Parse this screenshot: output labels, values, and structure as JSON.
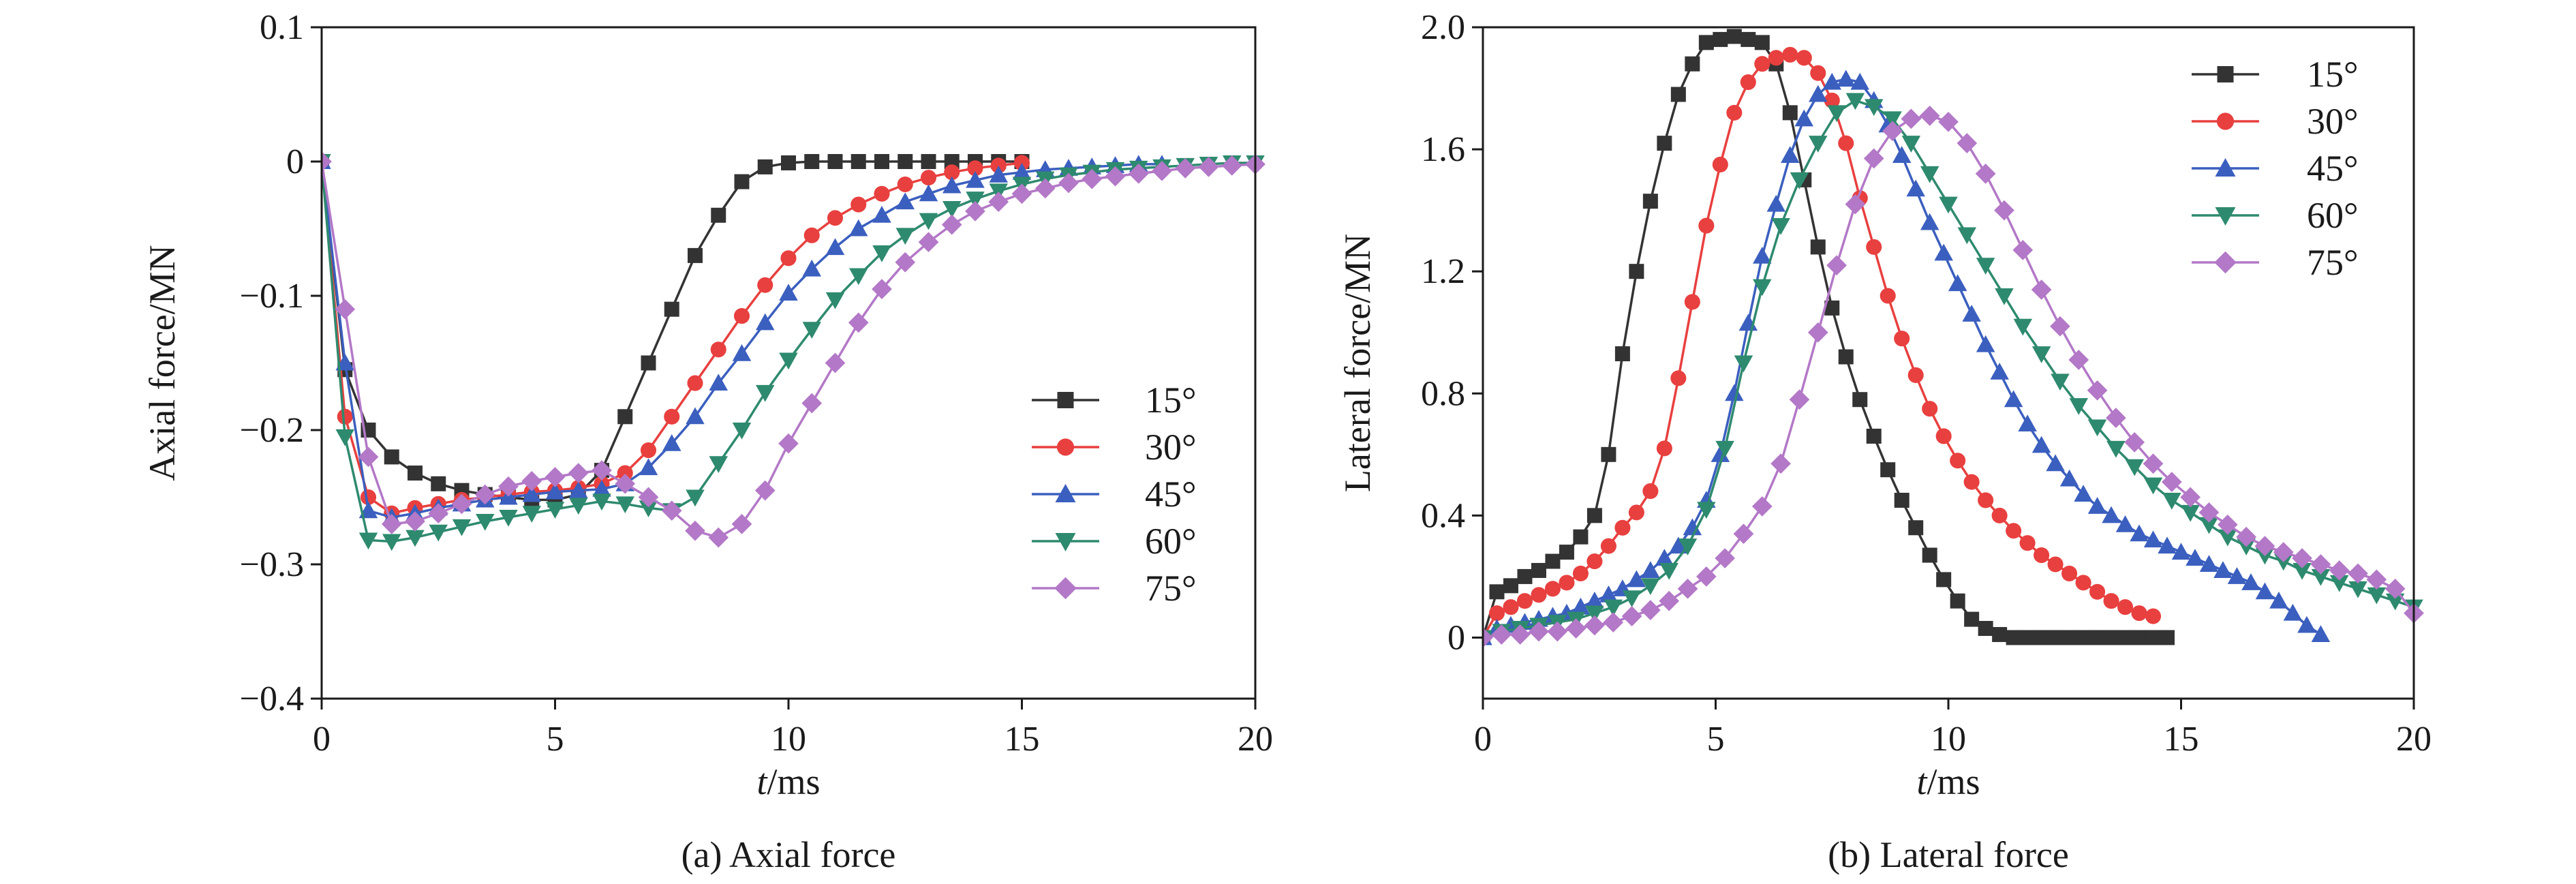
{
  "chart_data": [
    {
      "type": "line",
      "caption": "(a) Axial force",
      "xlabel_italic": "t",
      "xlabel_rest": "/ms",
      "ylabel": "Axial force/MN",
      "xlim": [
        0,
        20
      ],
      "ylim": [
        -0.4,
        0.1
      ],
      "xticks": [
        0,
        5,
        10,
        15,
        20
      ],
      "xtick_labels": [
        "0",
        "5",
        "10",
        "15",
        "20"
      ],
      "yticks": [
        -0.4,
        -0.3,
        -0.2,
        -0.1,
        0,
        0.1
      ],
      "ytick_labels": [
        "−0.4",
        "−0.3",
        "−0.2",
        "−0.1",
        "0",
        "0.1"
      ],
      "legend_position": "right-center",
      "series": [
        {
          "name": "15°",
          "color": "#333333",
          "marker": "square",
          "x": [
            0,
            0.5,
            1,
            1.5,
            2,
            2.5,
            3,
            3.5,
            4,
            4.5,
            5,
            5.5,
            6,
            6.5,
            7,
            7.5,
            8,
            8.5,
            9,
            9.5,
            10,
            10.5,
            11,
            11.5,
            12,
            12.5,
            13,
            13.5,
            14,
            14.5,
            15
          ],
          "y": [
            0,
            -0.155,
            -0.2,
            -0.22,
            -0.232,
            -0.24,
            -0.245,
            -0.248,
            -0.25,
            -0.252,
            -0.252,
            -0.248,
            -0.23,
            -0.19,
            -0.15,
            -0.11,
            -0.07,
            -0.04,
            -0.015,
            -0.004,
            -0.001,
            0,
            0,
            0,
            0,
            0,
            0,
            0,
            0,
            0,
            0
          ]
        },
        {
          "name": "30°",
          "color": "#e8403f",
          "marker": "circle",
          "x": [
            0,
            0.5,
            1,
            1.5,
            2,
            2.5,
            3,
            3.5,
            4,
            4.5,
            5,
            5.5,
            6,
            6.5,
            7,
            7.5,
            8,
            8.5,
            9,
            9.5,
            10,
            10.5,
            11,
            11.5,
            12,
            12.5,
            13,
            13.5,
            14,
            14.5,
            15
          ],
          "y": [
            0,
            -0.19,
            -0.25,
            -0.262,
            -0.258,
            -0.255,
            -0.252,
            -0.25,
            -0.248,
            -0.246,
            -0.245,
            -0.243,
            -0.24,
            -0.232,
            -0.215,
            -0.19,
            -0.165,
            -0.14,
            -0.115,
            -0.092,
            -0.072,
            -0.055,
            -0.042,
            -0.032,
            -0.024,
            -0.017,
            -0.012,
            -0.008,
            -0.005,
            -0.003,
            -0.001
          ]
        },
        {
          "name": "45°",
          "color": "#3b5fbf",
          "marker": "triangle-up",
          "x": [
            0,
            0.5,
            1,
            1.5,
            2,
            2.5,
            3,
            3.5,
            4,
            4.5,
            5,
            5.5,
            6,
            6.5,
            7,
            7.5,
            8,
            8.5,
            9,
            9.5,
            10,
            10.5,
            11,
            11.5,
            12,
            12.5,
            13,
            13.5,
            14,
            14.5,
            15,
            15.5,
            16,
            16.5,
            17,
            17.5,
            18
          ],
          "y": [
            0,
            -0.15,
            -0.26,
            -0.265,
            -0.262,
            -0.258,
            -0.255,
            -0.252,
            -0.25,
            -0.248,
            -0.246,
            -0.245,
            -0.244,
            -0.24,
            -0.228,
            -0.21,
            -0.19,
            -0.165,
            -0.143,
            -0.12,
            -0.098,
            -0.08,
            -0.064,
            -0.05,
            -0.04,
            -0.03,
            -0.024,
            -0.018,
            -0.014,
            -0.01,
            -0.008,
            -0.006,
            -0.005,
            -0.004,
            -0.003,
            -0.002,
            -0.002
          ]
        },
        {
          "name": "60°",
          "color": "#2e8a6e",
          "marker": "triangle-down",
          "x": [
            0,
            0.5,
            1,
            1.5,
            2,
            2.5,
            3,
            3.5,
            4,
            4.5,
            5,
            5.5,
            6,
            6.5,
            7,
            7.5,
            8,
            8.5,
            9,
            9.5,
            10,
            10.5,
            11,
            11.5,
            12,
            12.5,
            13,
            13.5,
            14,
            14.5,
            15,
            15.5,
            16,
            16.5,
            17,
            17.5,
            18,
            18.5,
            19,
            19.5,
            20
          ],
          "y": [
            0,
            -0.205,
            -0.282,
            -0.283,
            -0.28,
            -0.276,
            -0.272,
            -0.268,
            -0.265,
            -0.262,
            -0.259,
            -0.256,
            -0.253,
            -0.255,
            -0.258,
            -0.26,
            -0.25,
            -0.225,
            -0.2,
            -0.172,
            -0.148,
            -0.125,
            -0.103,
            -0.085,
            -0.068,
            -0.055,
            -0.044,
            -0.035,
            -0.028,
            -0.022,
            -0.017,
            -0.013,
            -0.01,
            -0.008,
            -0.006,
            -0.005,
            -0.004,
            -0.003,
            -0.002,
            -0.001,
            -0.001
          ]
        },
        {
          "name": "75°",
          "color": "#b378c7",
          "marker": "diamond",
          "x": [
            0,
            0.5,
            1,
            1.5,
            2,
            2.5,
            3,
            3.5,
            4,
            4.5,
            5,
            5.5,
            6,
            6.5,
            7,
            7.5,
            8,
            8.5,
            9,
            9.5,
            10,
            10.5,
            11,
            11.5,
            12,
            12.5,
            13,
            13.5,
            14,
            14.5,
            15,
            15.5,
            16,
            16.5,
            17,
            17.5,
            18,
            18.5,
            19,
            19.5,
            20
          ],
          "y": [
            0,
            -0.11,
            -0.22,
            -0.27,
            -0.268,
            -0.262,
            -0.255,
            -0.248,
            -0.242,
            -0.238,
            -0.235,
            -0.232,
            -0.23,
            -0.24,
            -0.25,
            -0.26,
            -0.275,
            -0.28,
            -0.27,
            -0.245,
            -0.21,
            -0.18,
            -0.15,
            -0.12,
            -0.095,
            -0.075,
            -0.06,
            -0.047,
            -0.037,
            -0.03,
            -0.024,
            -0.02,
            -0.016,
            -0.013,
            -0.011,
            -0.009,
            -0.007,
            -0.005,
            -0.004,
            -0.003,
            -0.002
          ]
        }
      ]
    },
    {
      "type": "line",
      "caption": "(b) Lateral force",
      "xlabel_italic": "t",
      "xlabel_rest": "/ms",
      "ylabel": "Lateral force/MN",
      "xlim": [
        0,
        20
      ],
      "ylim": [
        -0.2,
        2.0
      ],
      "xticks": [
        0,
        5,
        10,
        15,
        20
      ],
      "xtick_labels": [
        "0",
        "5",
        "10",
        "15",
        "20"
      ],
      "yticks": [
        0,
        0.4,
        0.8,
        1.2,
        1.6,
        2.0
      ],
      "ytick_labels": [
        "0",
        "0.4",
        "0.8",
        "1.2",
        "1.6",
        "2.0"
      ],
      "legend_position": "top-right",
      "series": [
        {
          "name": "15°",
          "color": "#333333",
          "marker": "square",
          "x": [
            0,
            0.3,
            0.6,
            0.9,
            1.2,
            1.5,
            1.8,
            2.1,
            2.4,
            2.7,
            3.0,
            3.3,
            3.6,
            3.9,
            4.2,
            4.5,
            4.8,
            5.1,
            5.4,
            5.7,
            6.0,
            6.3,
            6.6,
            6.9,
            7.2,
            7.5,
            7.8,
            8.1,
            8.4,
            8.7,
            9.0,
            9.3,
            9.6,
            9.9,
            10.2,
            10.5,
            10.8,
            11.1,
            11.4,
            11.7,
            12.0,
            12.3,
            12.6,
            12.9,
            13.2,
            13.5,
            13.8,
            14.1,
            14.4,
            14.7
          ],
          "y": [
            0,
            0.15,
            0.17,
            0.2,
            0.22,
            0.25,
            0.28,
            0.33,
            0.4,
            0.6,
            0.93,
            1.2,
            1.43,
            1.62,
            1.78,
            1.88,
            1.95,
            1.96,
            1.97,
            1.96,
            1.95,
            1.88,
            1.72,
            1.5,
            1.28,
            1.08,
            0.92,
            0.78,
            0.66,
            0.55,
            0.45,
            0.36,
            0.27,
            0.19,
            0.12,
            0.06,
            0.03,
            0.01,
            0,
            0,
            0,
            0,
            0,
            0,
            0,
            0,
            0,
            0,
            0,
            0
          ]
        },
        {
          "name": "30°",
          "color": "#e8403f",
          "marker": "circle",
          "x": [
            0,
            0.3,
            0.6,
            0.9,
            1.2,
            1.5,
            1.8,
            2.1,
            2.4,
            2.7,
            3.0,
            3.3,
            3.6,
            3.9,
            4.2,
            4.5,
            4.8,
            5.1,
            5.4,
            5.7,
            6.0,
            6.3,
            6.6,
            6.9,
            7.2,
            7.5,
            7.8,
            8.1,
            8.4,
            8.7,
            9.0,
            9.3,
            9.6,
            9.9,
            10.2,
            10.5,
            10.8,
            11.1,
            11.4,
            11.7,
            12.0,
            12.3,
            12.6,
            12.9,
            13.2,
            13.5,
            13.8,
            14.1,
            14.4
          ],
          "y": [
            0,
            0.08,
            0.1,
            0.12,
            0.14,
            0.16,
            0.18,
            0.21,
            0.25,
            0.3,
            0.36,
            0.41,
            0.48,
            0.62,
            0.85,
            1.1,
            1.35,
            1.55,
            1.72,
            1.82,
            1.88,
            1.9,
            1.91,
            1.9,
            1.85,
            1.76,
            1.62,
            1.44,
            1.28,
            1.12,
            0.98,
            0.86,
            0.75,
            0.66,
            0.58,
            0.51,
            0.45,
            0.4,
            0.35,
            0.31,
            0.27,
            0.24,
            0.21,
            0.18,
            0.15,
            0.12,
            0.1,
            0.08,
            0.07
          ]
        },
        {
          "name": "45°",
          "color": "#3b5fbf",
          "marker": "triangle-up",
          "x": [
            0,
            0.3,
            0.6,
            0.9,
            1.2,
            1.5,
            1.8,
            2.1,
            2.4,
            2.7,
            3.0,
            3.3,
            3.6,
            3.9,
            4.2,
            4.5,
            4.8,
            5.1,
            5.4,
            5.7,
            6.0,
            6.3,
            6.6,
            6.9,
            7.2,
            7.5,
            7.8,
            8.1,
            8.4,
            8.7,
            9.0,
            9.3,
            9.6,
            9.9,
            10.2,
            10.5,
            10.8,
            11.1,
            11.4,
            11.7,
            12.0,
            12.3,
            12.6,
            12.9,
            13.2,
            13.5,
            13.8,
            14.1,
            14.4,
            14.7,
            15.0,
            15.3,
            15.6,
            15.9,
            16.2,
            16.5,
            16.8,
            17.1,
            17.4,
            17.7,
            18.0
          ],
          "y": [
            0,
            0.03,
            0.04,
            0.05,
            0.06,
            0.07,
            0.08,
            0.1,
            0.12,
            0.14,
            0.16,
            0.19,
            0.22,
            0.26,
            0.3,
            0.36,
            0.45,
            0.6,
            0.8,
            1.03,
            1.25,
            1.42,
            1.58,
            1.7,
            1.78,
            1.82,
            1.83,
            1.82,
            1.76,
            1.68,
            1.58,
            1.47,
            1.36,
            1.26,
            1.16,
            1.06,
            0.96,
            0.87,
            0.78,
            0.7,
            0.63,
            0.57,
            0.52,
            0.47,
            0.43,
            0.4,
            0.37,
            0.34,
            0.32,
            0.3,
            0.28,
            0.26,
            0.24,
            0.22,
            0.2,
            0.18,
            0.15,
            0.12,
            0.08,
            0.04,
            0.01
          ]
        },
        {
          "name": "60°",
          "color": "#2e8a6e",
          "marker": "triangle-down",
          "x": [
            0,
            0.4,
            0.8,
            1.2,
            1.6,
            2.0,
            2.4,
            2.8,
            3.2,
            3.6,
            4.0,
            4.4,
            4.8,
            5.2,
            5.6,
            6.0,
            6.4,
            6.8,
            7.2,
            7.6,
            8.0,
            8.4,
            8.8,
            9.2,
            9.6,
            10.0,
            10.4,
            10.8,
            11.2,
            11.6,
            12.0,
            12.4,
            12.8,
            13.2,
            13.6,
            14.0,
            14.4,
            14.8,
            15.2,
            15.6,
            16.0,
            16.4,
            16.8,
            17.2,
            17.6,
            18.0,
            18.4,
            18.8,
            19.2,
            19.6,
            20.0
          ],
          "y": [
            0,
            0.02,
            0.03,
            0.04,
            0.05,
            0.06,
            0.08,
            0.1,
            0.13,
            0.17,
            0.22,
            0.3,
            0.42,
            0.62,
            0.9,
            1.15,
            1.35,
            1.5,
            1.62,
            1.72,
            1.76,
            1.74,
            1.7,
            1.62,
            1.52,
            1.42,
            1.32,
            1.22,
            1.12,
            1.02,
            0.93,
            0.84,
            0.76,
            0.69,
            0.62,
            0.56,
            0.5,
            0.45,
            0.41,
            0.37,
            0.33,
            0.3,
            0.27,
            0.25,
            0.22,
            0.2,
            0.18,
            0.16,
            0.14,
            0.12,
            0.1
          ]
        },
        {
          "name": "75°",
          "color": "#b378c7",
          "marker": "diamond",
          "x": [
            0,
            0.4,
            0.8,
            1.2,
            1.6,
            2.0,
            2.4,
            2.8,
            3.2,
            3.6,
            4.0,
            4.4,
            4.8,
            5.2,
            5.6,
            6.0,
            6.4,
            6.8,
            7.2,
            7.6,
            8.0,
            8.4,
            8.8,
            9.2,
            9.6,
            10.0,
            10.4,
            10.8,
            11.2,
            11.6,
            12.0,
            12.4,
            12.8,
            13.2,
            13.6,
            14.0,
            14.4,
            14.8,
            15.2,
            15.6,
            16.0,
            16.4,
            16.8,
            17.2,
            17.6,
            18.0,
            18.4,
            18.8,
            19.2,
            19.6,
            20.0
          ],
          "y": [
            0,
            0.01,
            0.01,
            0.02,
            0.02,
            0.03,
            0.04,
            0.05,
            0.07,
            0.09,
            0.12,
            0.16,
            0.2,
            0.26,
            0.34,
            0.43,
            0.57,
            0.78,
            1.0,
            1.22,
            1.42,
            1.57,
            1.66,
            1.7,
            1.71,
            1.69,
            1.62,
            1.52,
            1.4,
            1.27,
            1.14,
            1.02,
            0.91,
            0.81,
            0.72,
            0.64,
            0.57,
            0.51,
            0.46,
            0.41,
            0.37,
            0.33,
            0.3,
            0.28,
            0.26,
            0.24,
            0.22,
            0.21,
            0.19,
            0.16,
            0.08
          ]
        }
      ]
    }
  ]
}
